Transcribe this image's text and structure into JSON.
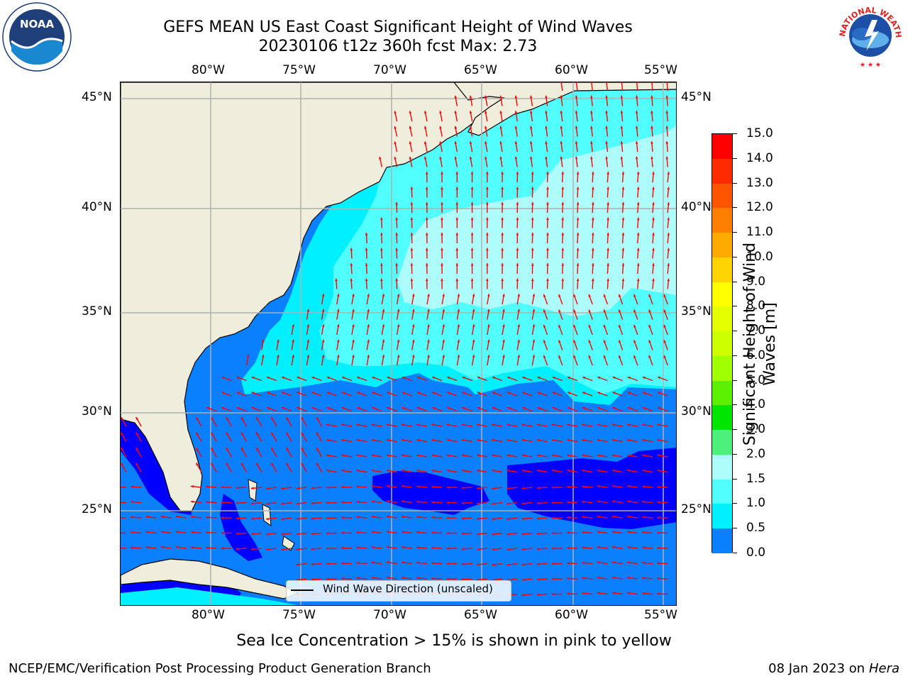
{
  "title": {
    "line1": "GEFS MEAN US East Coast Significant Height of Wind Waves",
    "line2": "20230106 t12z 360h fcst   Max: 2.73"
  },
  "logos": {
    "left": {
      "name": "noaa-logo",
      "text": "NOAA"
    },
    "right": {
      "name": "nws-logo",
      "text": "NATIONAL WEATHER SERVICE"
    }
  },
  "map": {
    "lon_labels": [
      "80°W",
      "75°W",
      "70°W",
      "65°W",
      "60°W",
      "55°W"
    ],
    "lat_labels": [
      "45°N",
      "40°N",
      "35°N",
      "30°N",
      "25°N"
    ],
    "legend_label": "Wind Wave Direction (unscaled)"
  },
  "colorbar": {
    "title": "Significant Height of Wind Waves [m]",
    "title_line1": "Significant Height of Wind",
    "title_line2": "Waves [m]",
    "labels": [
      "15.0",
      "14.0",
      "13.0",
      "12.0",
      "11.0",
      "10.0",
      "9.0",
      "8.0",
      "7.0",
      "6.0",
      "5.0",
      "4.0",
      "3.0",
      "2.0",
      "1.5",
      "1.0",
      "0.5",
      "0.0"
    ],
    "colors": [
      "#ff0000",
      "#ff2a00",
      "#ff5500",
      "#ff8000",
      "#ffaa00",
      "#ffd400",
      "#ffff00",
      "#e6ff00",
      "#ccff00",
      "#a0ff00",
      "#5af000",
      "#00e600",
      "#4cf07a",
      "#aefdfd",
      "#52ffff",
      "#00f0ff",
      "#0a80ff",
      "#0000ff"
    ]
  },
  "chart_data": {
    "type": "heatmap",
    "title": "GEFS MEAN US East Coast Significant Height of Wind Waves",
    "subtitle": "20230106 t12z 360h fcst   Max: 2.73",
    "variable": "Significant Height of Wind Waves [m]",
    "max_value": 2.73,
    "lon_range": [
      -85,
      -54.5
    ],
    "lat_range": [
      20.5,
      46
    ],
    "color_levels": [
      0.0,
      0.5,
      1.0,
      1.5,
      2.0,
      3.0,
      4.0,
      5.0,
      6.0,
      7.0,
      8.0,
      9.0,
      10.0,
      11.0,
      12.0,
      13.0,
      14.0,
      15.0
    ],
    "colors": {
      "land": "#efeedc",
      "level_0_0.5": "#0000ff",
      "level_0.5_1.0": "#0a80ff",
      "level_1.0_1.5": "#00f0ff",
      "level_1.5_2.0": "#52ffff",
      "level_2.0_3.0": "#aefdfd",
      "arrow": "#ff0000",
      "grid": "#b0b0b0"
    },
    "grid": true,
    "legend_placement": "bottom-center"
  },
  "footer": {
    "note": "Sea Ice Concentration > 15% is shown in pink to yellow",
    "left": "NCEP/EMC/Verification Post Processing Product Generation Branch",
    "right_date": "08 Jan 2023 on ",
    "right_host": "Hera"
  }
}
